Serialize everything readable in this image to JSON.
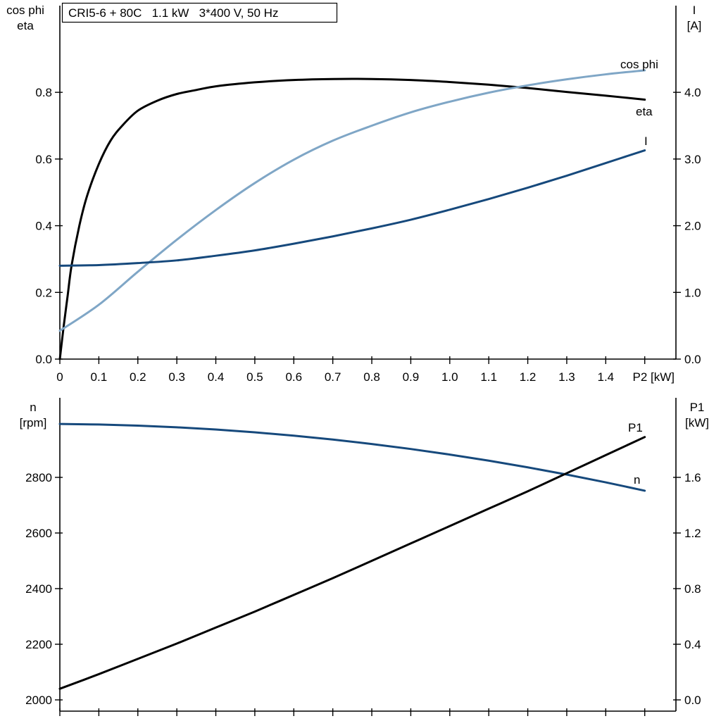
{
  "chart_data": [
    {
      "type": "line",
      "title": "CRI5-6 + 80C   1.1 kW   3*400 V, 50 Hz",
      "x_axis": {
        "min": 0,
        "max": 1.58,
        "label": "P2 [kW]",
        "ticks": [
          0,
          0.1,
          0.2,
          0.3,
          0.4,
          0.5,
          0.6,
          0.7,
          0.8,
          0.9,
          1.0,
          1.1,
          1.2,
          1.3,
          1.4,
          1.5
        ],
        "tick_labels": [
          "0",
          "0.1",
          "0.2",
          "0.3",
          "0.4",
          "0.5",
          "0.6",
          "0.7",
          "0.8",
          "0.9",
          "1.0",
          "1.1",
          "1.2",
          "1.3",
          "1.4",
          ""
        ]
      },
      "left_axis": {
        "min": 0,
        "max": 1.06,
        "title_lines": [
          "cos phi",
          "eta"
        ],
        "ticks": [
          0,
          0.2,
          0.4,
          0.6,
          0.8
        ],
        "tick_labels": [
          "0.0",
          "0.2",
          "0.4",
          "0.6",
          "0.8"
        ]
      },
      "right_axis": {
        "min": 0,
        "max": 5.3,
        "title_lines": [
          "I",
          "[A]"
        ],
        "ticks": [
          0,
          1,
          2,
          3,
          4
        ],
        "tick_labels": [
          "0.0",
          "1.0",
          "2.0",
          "3.0",
          "4.0"
        ]
      },
      "series": [
        {
          "id": "eta",
          "label": "eta",
          "color": "#000000",
          "axis": "left",
          "points": [
            [
              0,
              0
            ],
            [
              0.01,
              0.1
            ],
            [
              0.02,
              0.19
            ],
            [
              0.03,
              0.28
            ],
            [
              0.05,
              0.4
            ],
            [
              0.07,
              0.49
            ],
            [
              0.1,
              0.585
            ],
            [
              0.13,
              0.655
            ],
            [
              0.16,
              0.7
            ],
            [
              0.2,
              0.745
            ],
            [
              0.25,
              0.775
            ],
            [
              0.3,
              0.795
            ],
            [
              0.35,
              0.807
            ],
            [
              0.4,
              0.818
            ],
            [
              0.5,
              0.83
            ],
            [
              0.6,
              0.837
            ],
            [
              0.7,
              0.84
            ],
            [
              0.8,
              0.84
            ],
            [
              0.9,
              0.837
            ],
            [
              1.0,
              0.831
            ],
            [
              1.1,
              0.823
            ],
            [
              1.2,
              0.813
            ],
            [
              1.3,
              0.801
            ],
            [
              1.4,
              0.79
            ],
            [
              1.5,
              0.778
            ]
          ]
        },
        {
          "id": "cos-phi",
          "label": "cos phi",
          "color": "#7fa6c6",
          "axis": "left",
          "points": [
            [
              0,
              0.085
            ],
            [
              0.1,
              0.163
            ],
            [
              0.2,
              0.262
            ],
            [
              0.3,
              0.358
            ],
            [
              0.4,
              0.447
            ],
            [
              0.5,
              0.528
            ],
            [
              0.6,
              0.598
            ],
            [
              0.7,
              0.655
            ],
            [
              0.8,
              0.7
            ],
            [
              0.9,
              0.74
            ],
            [
              1.0,
              0.772
            ],
            [
              1.1,
              0.799
            ],
            [
              1.2,
              0.821
            ],
            [
              1.3,
              0.839
            ],
            [
              1.4,
              0.854
            ],
            [
              1.5,
              0.866
            ]
          ]
        },
        {
          "id": "current",
          "label": "I",
          "color": "#16497c",
          "axis": "right",
          "points": [
            [
              0,
              1.4
            ],
            [
              0.1,
              1.41
            ],
            [
              0.2,
              1.44
            ],
            [
              0.3,
              1.48
            ],
            [
              0.4,
              1.55
            ],
            [
              0.5,
              1.63
            ],
            [
              0.6,
              1.73
            ],
            [
              0.7,
              1.84
            ],
            [
              0.8,
              1.96
            ],
            [
              0.9,
              2.09
            ],
            [
              1.0,
              2.24
            ],
            [
              1.1,
              2.4
            ],
            [
              1.2,
              2.57
            ],
            [
              1.3,
              2.75
            ],
            [
              1.4,
              2.94
            ],
            [
              1.5,
              3.13
            ]
          ]
        }
      ]
    },
    {
      "type": "line",
      "x_axis": {
        "min": 0,
        "max": 1.58,
        "label": "",
        "ticks": [
          0,
          0.1,
          0.2,
          0.3,
          0.4,
          0.5,
          0.6,
          0.7,
          0.8,
          0.9,
          1.0,
          1.1,
          1.2,
          1.3,
          1.4,
          1.5
        ],
        "tick_labels": []
      },
      "left_axis": {
        "min": 1959.5,
        "max": 3086,
        "title_lines": [
          "n",
          "[rpm]"
        ],
        "ticks": [
          2000,
          2200,
          2400,
          2600,
          2800
        ],
        "tick_labels": [
          "2000",
          "2200",
          "2400",
          "2600",
          "2800"
        ]
      },
      "right_axis": {
        "min": -0.081,
        "max": 2.172,
        "title_lines": [
          "P1",
          "[kW]"
        ],
        "ticks": [
          0,
          0.4,
          0.8,
          1.2,
          1.6
        ],
        "tick_labels": [
          "0.0",
          "0.4",
          "0.8",
          "1.2",
          "1.6"
        ]
      },
      "series": [
        {
          "id": "speed",
          "label": "n",
          "color": "#16497c",
          "axis": "left",
          "points": [
            [
              0,
              2992
            ],
            [
              0.1,
              2990
            ],
            [
              0.2,
              2986
            ],
            [
              0.3,
              2980
            ],
            [
              0.4,
              2972
            ],
            [
              0.5,
              2962
            ],
            [
              0.6,
              2950
            ],
            [
              0.7,
              2936
            ],
            [
              0.8,
              2920
            ],
            [
              0.9,
              2902
            ],
            [
              1.0,
              2882
            ],
            [
              1.1,
              2860
            ],
            [
              1.2,
              2836
            ],
            [
              1.3,
              2810
            ],
            [
              1.4,
              2782
            ],
            [
              1.5,
              2752
            ]
          ]
        },
        {
          "id": "p1",
          "label": "P1",
          "color": "#000000",
          "axis": "right",
          "points": [
            [
              0,
              0.08
            ],
            [
              0.1,
              0.185
            ],
            [
              0.2,
              0.295
            ],
            [
              0.3,
              0.405
            ],
            [
              0.4,
              0.52
            ],
            [
              0.5,
              0.635
            ],
            [
              0.6,
              0.755
            ],
            [
              0.7,
              0.875
            ],
            [
              0.8,
              1.0
            ],
            [
              0.9,
              1.125
            ],
            [
              1.0,
              1.25
            ],
            [
              1.1,
              1.375
            ],
            [
              1.2,
              1.5
            ],
            [
              1.3,
              1.63
            ],
            [
              1.4,
              1.76
            ],
            [
              1.5,
              1.89
            ]
          ]
        }
      ]
    }
  ]
}
